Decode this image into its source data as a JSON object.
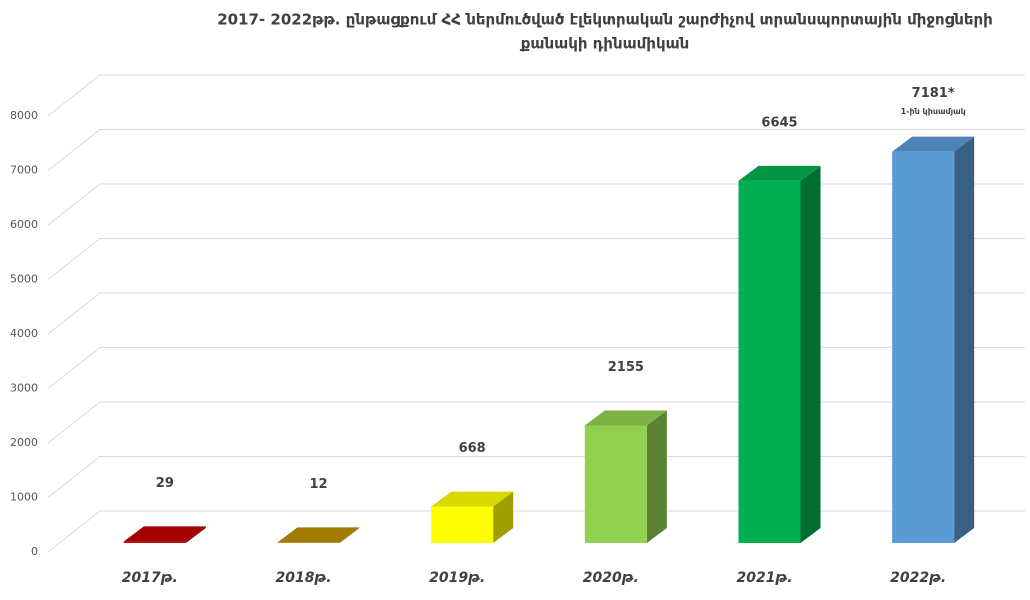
{
  "chart_data": {
    "type": "bar3d",
    "title": [
      "2017- 2022թթ. ընթացքում  ՀՀ ներմուծված էլեկտրական շարժիչով տրանսպորտային միջոցների",
      "քանակի  դինամիկան"
    ],
    "categories": [
      "2017թ.",
      "2018թ.",
      "2019թ.",
      "2020թ.",
      "2021թ.",
      "2022թ."
    ],
    "values": [
      29,
      12,
      668,
      2155,
      6645,
      7181
    ],
    "value_labels": [
      "29",
      "12",
      "668",
      "2155",
      "6645",
      "7181*"
    ],
    "annotation": "1-ին կիսամյակ",
    "colors": [
      "#c00000",
      "#c09000",
      "#ffff00",
      "#92d050",
      "#00b050",
      "#5b9bd5"
    ],
    "ylim": [
      0,
      8000
    ],
    "yticks": [
      0,
      1000,
      2000,
      3000,
      4000,
      5000,
      6000,
      7000,
      8000
    ],
    "grid": true
  }
}
